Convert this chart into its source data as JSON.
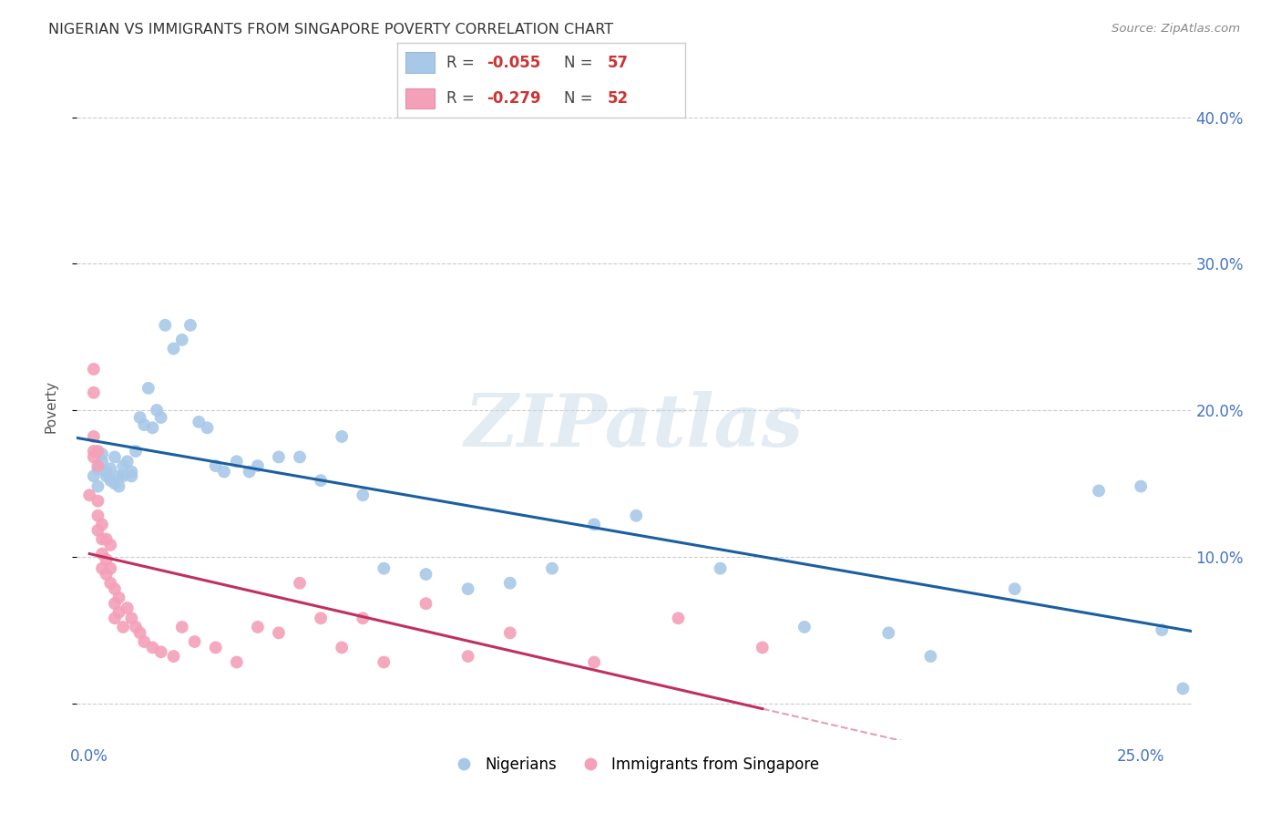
{
  "title": "NIGERIAN VS IMMIGRANTS FROM SINGAPORE POVERTY CORRELATION CHART",
  "source": "Source: ZipAtlas.com",
  "ylabel": "Poverty",
  "y_ticks": [
    0.0,
    0.1,
    0.2,
    0.3,
    0.4
  ],
  "y_tick_labels": [
    "",
    "10.0%",
    "20.0%",
    "30.0%",
    "40.0%"
  ],
  "x_ticks": [
    0.0,
    0.05,
    0.1,
    0.15,
    0.2,
    0.25
  ],
  "x_tick_labels": [
    "0.0%",
    "",
    "",
    "",
    "",
    "25.0%"
  ],
  "xlim": [
    -0.003,
    0.262
  ],
  "ylim": [
    -0.025,
    0.43
  ],
  "blue_color": "#a8c8e8",
  "pink_color": "#f4a0b8",
  "blue_line_color": "#1a5fa0",
  "pink_line_color": "#c03060",
  "watermark": "ZIPatlas",
  "nigerians_x": [
    0.001,
    0.002,
    0.002,
    0.003,
    0.003,
    0.004,
    0.004,
    0.005,
    0.005,
    0.006,
    0.006,
    0.007,
    0.007,
    0.008,
    0.008,
    0.009,
    0.01,
    0.01,
    0.011,
    0.012,
    0.013,
    0.014,
    0.015,
    0.016,
    0.017,
    0.018,
    0.02,
    0.022,
    0.024,
    0.026,
    0.028,
    0.03,
    0.032,
    0.035,
    0.038,
    0.04,
    0.045,
    0.05,
    0.055,
    0.06,
    0.065,
    0.07,
    0.08,
    0.09,
    0.1,
    0.11,
    0.12,
    0.13,
    0.15,
    0.17,
    0.19,
    0.2,
    0.22,
    0.24,
    0.25,
    0.255,
    0.26
  ],
  "nigerians_y": [
    0.155,
    0.16,
    0.148,
    0.165,
    0.17,
    0.155,
    0.158,
    0.152,
    0.16,
    0.168,
    0.15,
    0.155,
    0.148,
    0.162,
    0.155,
    0.165,
    0.158,
    0.155,
    0.172,
    0.195,
    0.19,
    0.215,
    0.188,
    0.2,
    0.195,
    0.258,
    0.242,
    0.248,
    0.258,
    0.192,
    0.188,
    0.162,
    0.158,
    0.165,
    0.158,
    0.162,
    0.168,
    0.168,
    0.152,
    0.182,
    0.142,
    0.092,
    0.088,
    0.078,
    0.082,
    0.092,
    0.122,
    0.128,
    0.092,
    0.052,
    0.048,
    0.032,
    0.078,
    0.145,
    0.148,
    0.05,
    0.01
  ],
  "singapore_x": [
    0.0,
    0.001,
    0.001,
    0.001,
    0.001,
    0.001,
    0.002,
    0.002,
    0.002,
    0.002,
    0.002,
    0.003,
    0.003,
    0.003,
    0.003,
    0.004,
    0.004,
    0.004,
    0.005,
    0.005,
    0.005,
    0.006,
    0.006,
    0.006,
    0.007,
    0.007,
    0.008,
    0.009,
    0.01,
    0.011,
    0.012,
    0.013,
    0.015,
    0.017,
    0.02,
    0.022,
    0.025,
    0.03,
    0.035,
    0.04,
    0.045,
    0.05,
    0.055,
    0.06,
    0.065,
    0.07,
    0.08,
    0.09,
    0.1,
    0.12,
    0.14,
    0.16
  ],
  "singapore_y": [
    0.142,
    0.228,
    0.212,
    0.182,
    0.172,
    0.168,
    0.162,
    0.172,
    0.138,
    0.128,
    0.118,
    0.122,
    0.112,
    0.102,
    0.092,
    0.112,
    0.098,
    0.088,
    0.108,
    0.092,
    0.082,
    0.078,
    0.068,
    0.058,
    0.072,
    0.062,
    0.052,
    0.065,
    0.058,
    0.052,
    0.048,
    0.042,
    0.038,
    0.035,
    0.032,
    0.052,
    0.042,
    0.038,
    0.028,
    0.052,
    0.048,
    0.082,
    0.058,
    0.038,
    0.058,
    0.028,
    0.068,
    0.032,
    0.048,
    0.028,
    0.058,
    0.038
  ]
}
